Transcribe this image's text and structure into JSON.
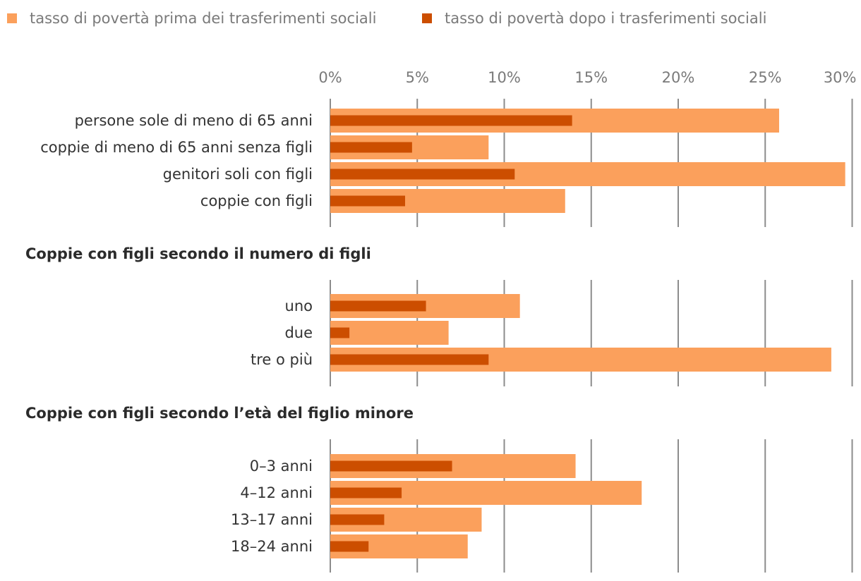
{
  "chart_data": {
    "type": "bar",
    "orientation": "horizontal",
    "x_unit": "%",
    "xlim": [
      0,
      30
    ],
    "xticks": [
      "0%",
      "5%",
      "10%",
      "15%",
      "20%",
      "25%",
      "30%"
    ],
    "legend_position": "top-left",
    "series": [
      {
        "name": "tasso di povertà prima dei trasferimenti sociali",
        "color": "#fba05c"
      },
      {
        "name": "tasso di povertà dopo i trasferimenti sociali",
        "color": "#cc4e00"
      }
    ],
    "groups": [
      {
        "title": "",
        "categories": [
          {
            "label": "persone sole di meno di 65 anni",
            "before": 25.8,
            "after": 13.9
          },
          {
            "label": "coppie di meno di 65 anni senza figli",
            "before": 9.1,
            "after": 4.7
          },
          {
            "label": "genitori soli con figli",
            "before": 29.6,
            "after": 10.6
          },
          {
            "label": "coppie con figli",
            "before": 13.5,
            "after": 4.3
          }
        ]
      },
      {
        "title": "Coppie con figli secondo il numero di figli",
        "categories": [
          {
            "label": "uno",
            "before": 10.9,
            "after": 5.5
          },
          {
            "label": "due",
            "before": 6.8,
            "after": 1.1
          },
          {
            "label": "tre o più",
            "before": 28.8,
            "after": 9.1
          }
        ]
      },
      {
        "title": "Coppie con figli secondo l’età del figlio minore",
        "categories": [
          {
            "label": "0–3 anni",
            "before": 14.1,
            "after": 7.0
          },
          {
            "label": "4–12 anni",
            "before": 17.9,
            "after": 4.1
          },
          {
            "label": "13–17 anni",
            "before": 8.7,
            "after": 3.1
          },
          {
            "label": "18–24 anni",
            "before": 7.9,
            "after": 2.2
          }
        ]
      }
    ]
  }
}
